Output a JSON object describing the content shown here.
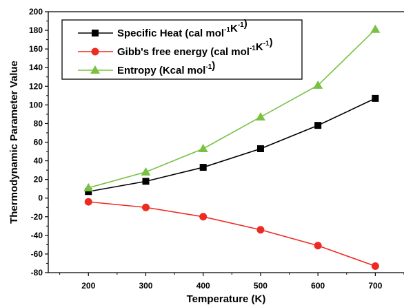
{
  "chart_data": {
    "type": "line",
    "xlabel": "Temperature (K)",
    "ylabel": "Thermodynamic Parameter Value",
    "xlim": [
      130,
      750
    ],
    "ylim": [
      -80,
      200
    ],
    "x_ticks": [
      200,
      300,
      400,
      500,
      600,
      700
    ],
    "y_ticks": [
      -80,
      -60,
      -40,
      -20,
      0,
      20,
      40,
      60,
      80,
      100,
      120,
      140,
      160,
      180,
      200
    ],
    "grid": false,
    "legend_position": "top-left",
    "x": [
      200,
      300,
      400,
      500,
      600,
      700
    ],
    "series": [
      {
        "name": "Specific Heat (cal mol-1K-1)",
        "name_parts": [
          "Specific Heat (cal mol",
          "-1",
          "K",
          "-1",
          ")"
        ],
        "marker": "square",
        "color": "#000000",
        "values": [
          7,
          18,
          33,
          53,
          78,
          107
        ]
      },
      {
        "name": "Gibb's free energy (cal mol-1K-1)",
        "name_parts": [
          "Gibb's free energy (cal mol",
          "-1",
          "K",
          "-1",
          ")"
        ],
        "marker": "circle",
        "color": "#ee2b22",
        "values": [
          -4,
          -10,
          -20,
          -34,
          -51,
          -73
        ]
      },
      {
        "name": "Entropy (Kcal mol-1)",
        "name_parts": [
          "Entropy (Kcal mol",
          "-1",
          ")"
        ],
        "marker": "triangle",
        "color": "#7ac143",
        "values": [
          11,
          28,
          53,
          87,
          121,
          181
        ]
      }
    ]
  }
}
